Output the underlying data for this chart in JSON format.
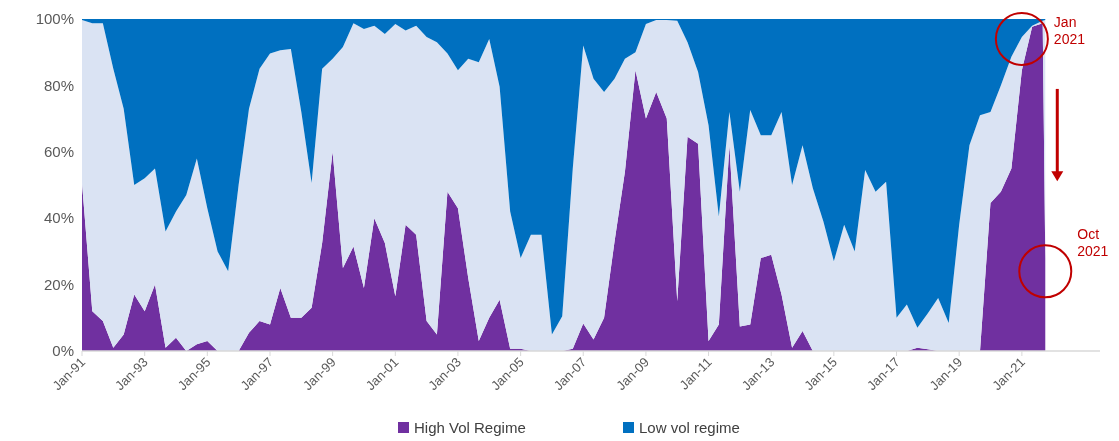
{
  "chart_data": {
    "type": "area",
    "stacked": true,
    "x": [
      "1991-01",
      "1991-05",
      "1991-09",
      "1992-01",
      "1992-05",
      "1992-09",
      "1993-01",
      "1993-05",
      "1993-09",
      "1994-01",
      "1994-05",
      "1994-09",
      "1995-01",
      "1995-05",
      "1995-09",
      "1996-01",
      "1996-05",
      "1996-09",
      "1997-01",
      "1997-05",
      "1997-09",
      "1998-01",
      "1998-05",
      "1998-09",
      "1999-01",
      "1999-05",
      "1999-09",
      "2000-01",
      "2000-05",
      "2000-09",
      "2001-01",
      "2001-05",
      "2001-09",
      "2002-01",
      "2002-05",
      "2002-09",
      "2003-01",
      "2003-05",
      "2003-09",
      "2004-01",
      "2004-05",
      "2004-09",
      "2005-01",
      "2005-05",
      "2005-09",
      "2006-01",
      "2006-05",
      "2006-09",
      "2007-01",
      "2007-05",
      "2007-09",
      "2008-01",
      "2008-05",
      "2008-09",
      "2009-01",
      "2009-05",
      "2009-09",
      "2010-01",
      "2010-05",
      "2010-09",
      "2011-01",
      "2011-05",
      "2011-09",
      "2012-01",
      "2012-05",
      "2012-09",
      "2013-01",
      "2013-05",
      "2013-09",
      "2014-01",
      "2014-05",
      "2014-09",
      "2015-01",
      "2015-05",
      "2015-09",
      "2016-01",
      "2016-05",
      "2016-09",
      "2017-01",
      "2017-05",
      "2017-09",
      "2018-01",
      "2018-05",
      "2018-09",
      "2019-01",
      "2019-05",
      "2019-09",
      "2020-01",
      "2020-05",
      "2020-09",
      "2021-01",
      "2021-05",
      "2021-09",
      "2021-10"
    ],
    "series": [
      {
        "name": "High Vol Regime",
        "color": "#7030a0",
        "values": [
          50.6,
          12,
          9,
          1,
          5,
          17,
          12,
          20,
          1,
          4,
          0,
          2,
          3,
          0,
          0,
          0,
          5.5,
          9,
          8,
          19,
          10,
          10,
          13,
          32.5,
          60,
          25,
          31.5,
          19,
          40,
          32.5,
          16.5,
          38,
          35,
          9,
          5,
          48,
          43,
          22,
          3,
          10,
          15.4,
          0.7,
          0.7,
          0,
          0,
          0,
          0,
          0.7,
          8.3,
          3.5,
          10,
          33,
          54,
          84.6,
          70,
          78,
          70,
          15,
          64.5,
          62.4,
          3,
          8,
          62,
          7.4,
          8,
          28,
          29,
          17,
          1,
          6,
          0,
          0,
          0,
          0,
          0,
          0,
          0,
          0,
          0,
          0,
          1,
          0.5,
          0,
          0,
          0,
          0,
          0,
          44.6,
          48,
          55,
          84.6,
          97.7,
          98.7,
          28
        ]
      },
      {
        "color": "#dae3f3",
        "values": [
          49.1,
          86.7,
          89.7,
          84,
          68,
          33,
          40,
          35,
          35,
          38,
          47,
          56,
          40,
          30,
          24,
          50,
          67.5,
          76,
          81.6,
          71.6,
          81,
          62,
          37.6,
          52.5,
          28,
          66.6,
          67.2,
          78,
          58,
          63,
          82,
          58.5,
          63,
          85.6,
          88,
          41.6,
          41.6,
          66,
          84,
          84,
          64.2,
          41.3,
          27.3,
          35,
          35,
          5,
          10.5,
          54.3,
          83.7,
          78.5,
          68,
          49,
          34,
          5.4,
          28.5,
          21.7,
          29.7,
          84.5,
          28.5,
          21.6,
          65,
          32.5,
          10,
          40.6,
          64.6,
          37,
          36,
          55,
          49,
          56,
          49,
          39,
          27,
          38,
          30,
          54.5,
          48,
          51,
          10,
          14,
          6,
          10.9,
          16,
          8.4,
          38,
          62,
          71,
          27.4,
          32,
          33.6,
          10,
          0.3,
          0.8,
          71.7
        ]
      },
      {
        "name": "Low vol regime",
        "color": "#0070c0",
        "values": [
          0.3,
          1.3,
          1.3,
          15,
          27,
          50,
          48,
          45,
          64,
          58,
          53,
          42,
          57,
          70,
          76,
          50,
          27,
          15,
          10.4,
          9.4,
          9,
          28,
          49.4,
          15,
          12,
          8.4,
          1.3,
          3,
          2,
          4.5,
          1.5,
          3.5,
          2,
          5.4,
          7,
          10.4,
          15.4,
          12,
          13,
          6,
          20.4,
          58,
          72,
          65,
          65,
          95,
          89.5,
          45,
          8,
          18,
          22,
          18,
          12,
          10,
          1.5,
          0.3,
          0.3,
          0.5,
          7,
          16,
          32,
          59.5,
          28,
          52,
          27.4,
          35,
          35,
          28,
          50,
          38,
          51,
          61,
          73,
          62,
          70,
          45.5,
          52,
          49,
          90,
          86,
          93,
          88.6,
          84,
          91.6,
          62,
          38,
          29,
          28,
          20,
          11.4,
          5.4,
          2,
          0.5,
          0.3
        ]
      }
    ],
    "xlim": [
      "1991-01",
      "2023-07"
    ],
    "xticks": [
      {
        "value": "1991-01",
        "label": "Jan-91"
      },
      {
        "value": "1993-01",
        "label": "Jan-93"
      },
      {
        "value": "1995-01",
        "label": "Jan-95"
      },
      {
        "value": "1997-01",
        "label": "Jan-97"
      },
      {
        "value": "1999-01",
        "label": "Jan-99"
      },
      {
        "value": "2001-01",
        "label": "Jan-01"
      },
      {
        "value": "2003-01",
        "label": "Jan-03"
      },
      {
        "value": "2005-01",
        "label": "Jan-05"
      },
      {
        "value": "2007-01",
        "label": "Jan-07"
      },
      {
        "value": "2009-01",
        "label": "Jan-09"
      },
      {
        "value": "2011-01",
        "label": "Jan-11"
      },
      {
        "value": "2013-01",
        "label": "Jan-13"
      },
      {
        "value": "2015-01",
        "label": "Jan-15"
      },
      {
        "value": "2017-01",
        "label": "Jan-17"
      },
      {
        "value": "2019-01",
        "label": "Jan-19"
      },
      {
        "value": "2021-01",
        "label": "Jan-21"
      }
    ],
    "ylim": [
      0,
      100
    ],
    "yticks": [
      {
        "value": 0,
        "label": "0%"
      },
      {
        "value": 20,
        "label": "20%"
      },
      {
        "value": 40,
        "label": "40%"
      },
      {
        "value": 60,
        "label": "60%"
      },
      {
        "value": 80,
        "label": "80%"
      },
      {
        "value": 100,
        "label": "100%"
      }
    ],
    "legend": "bottom",
    "annotations": [
      {
        "text": "Jan 2021",
        "x": "2021-01",
        "y": 94
      },
      {
        "text": "Oct 2021",
        "x": "2021-10",
        "y": 24
      }
    ]
  }
}
